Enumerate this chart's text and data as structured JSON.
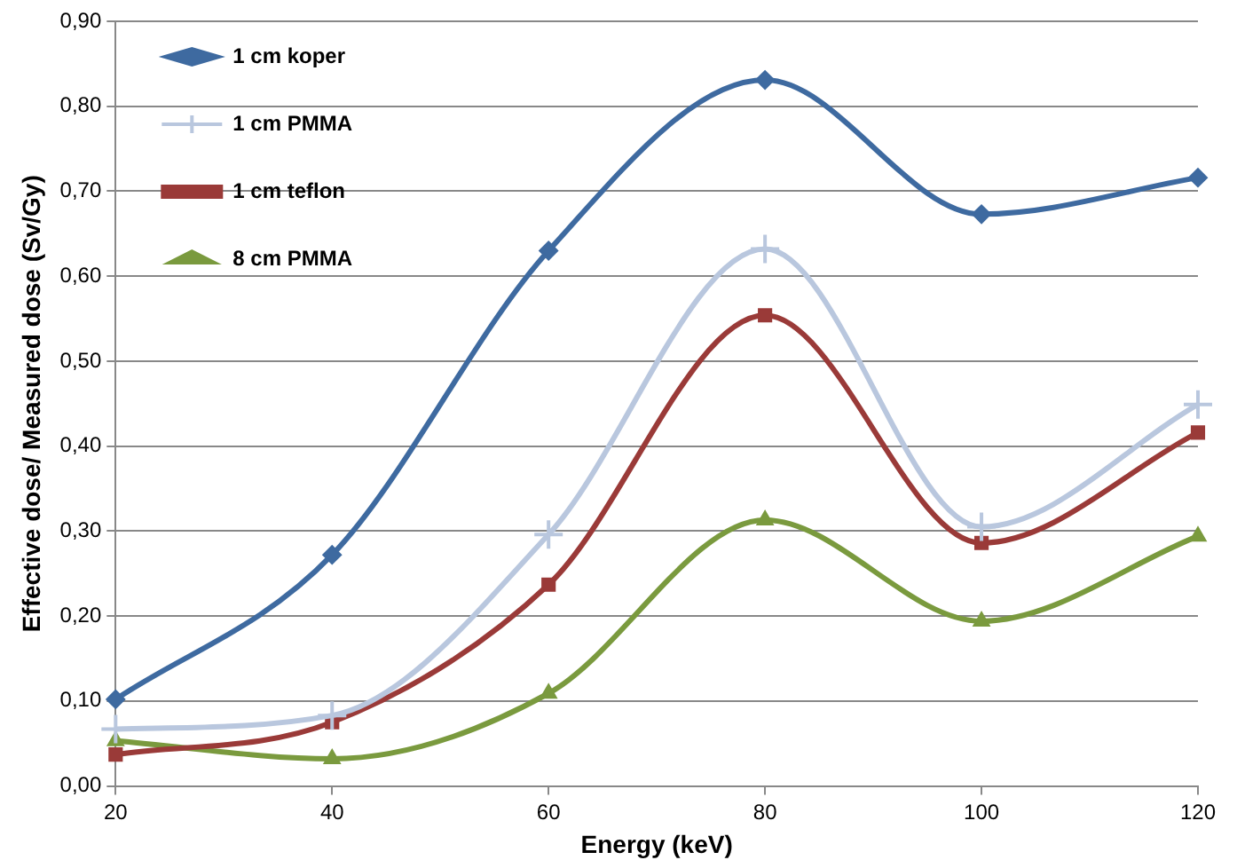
{
  "chart_data": {
    "type": "line",
    "xlabel": "Energy (keV)",
    "ylabel": "Effective dose/ Measured dose (Sv/Gy)",
    "x": [
      20,
      40,
      60,
      80,
      100,
      120
    ],
    "series": [
      {
        "name": "1 cm koper",
        "color": "#3e6aa0",
        "marker": "diamond",
        "values": [
          0.102,
          0.272,
          0.63,
          0.831,
          0.673,
          0.716
        ]
      },
      {
        "name": "1 cm PMMA",
        "color": "#b9c7de",
        "marker": "cross",
        "values": [
          0.067,
          0.083,
          0.296,
          0.632,
          0.305,
          0.449
        ]
      },
      {
        "name": "1 cm teflon",
        "color": "#9a3a38",
        "marker": "square",
        "values": [
          0.037,
          0.075,
          0.237,
          0.554,
          0.286,
          0.416
        ]
      },
      {
        "name": "8 cm PMMA",
        "color": "#7a9a3e",
        "marker": "triangle",
        "values": [
          0.053,
          0.032,
          0.109,
          0.313,
          0.194,
          0.294
        ]
      }
    ],
    "xlim": [
      20,
      120
    ],
    "xticks": [
      20,
      40,
      60,
      80,
      100,
      120
    ],
    "ylim": [
      0,
      0.9
    ],
    "yticks": [
      {
        "value": 0,
        "label": "0,00"
      },
      {
        "value": 0.1,
        "label": "0,10"
      },
      {
        "value": 0.2,
        "label": "0,20"
      },
      {
        "value": 0.3,
        "label": "0,30"
      },
      {
        "value": 0.4,
        "label": "0,40"
      },
      {
        "value": 0.5,
        "label": "0,50"
      },
      {
        "value": 0.6,
        "label": "0,60"
      },
      {
        "value": 0.7,
        "label": "0,70"
      },
      {
        "value": 0.8,
        "label": "0,80"
      },
      {
        "value": 0.9,
        "label": "0,90"
      }
    ],
    "grid": "y",
    "legend": "top left",
    "line_style": "solid"
  }
}
